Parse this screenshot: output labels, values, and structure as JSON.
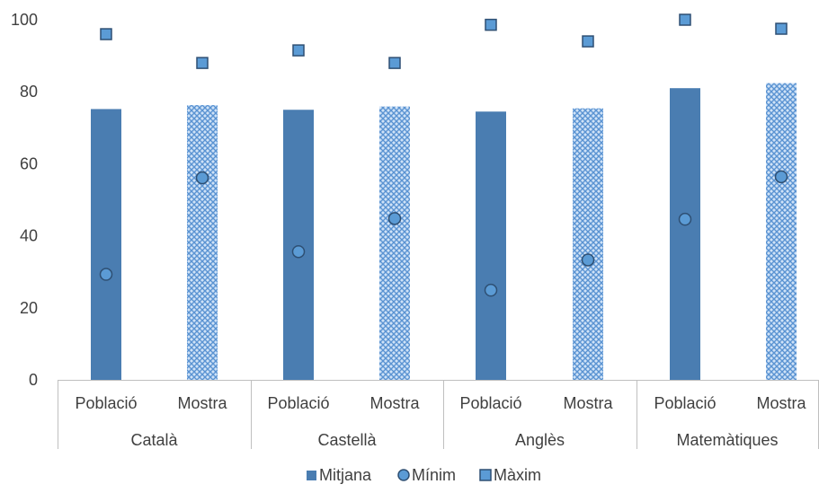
{
  "chart_data": {
    "type": "bar",
    "groups": [
      "Català",
      "Castellà",
      "Anglès",
      "Matemàtiques"
    ],
    "subcategories": [
      "Població",
      "Mostra",
      "Població",
      "Mostra",
      "Població",
      "Mostra",
      "Població",
      "Mostra"
    ],
    "series": [
      {
        "name": "Mitjana",
        "kind": "bar",
        "values": [
          75.2,
          76.3,
          75.0,
          75.9,
          74.5,
          75.4,
          81.0,
          82.4
        ]
      },
      {
        "name": "Mínim",
        "kind": "marker-circle",
        "values": [
          29.3,
          56.1,
          35.6,
          44.8,
          24.9,
          33.3,
          44.6,
          56.4
        ]
      },
      {
        "name": "Màxim",
        "kind": "marker-square",
        "values": [
          96.0,
          88.0,
          91.5,
          88.0,
          98.6,
          94.0,
          100.0,
          97.5
        ]
      }
    ],
    "yticks": [
      "0",
      "20",
      "40",
      "60",
      "80",
      "100"
    ],
    "ylim": [
      0,
      100
    ],
    "legend_position": "bottom",
    "grid": false,
    "colors": {
      "bar_fill": "#4a7db1",
      "bar_pattern_light": "#cfe2f7",
      "bar_pattern_dark": "#5a93d2",
      "marker_fill": "#5b9bd5",
      "marker_edge": "#2e4f73",
      "axis": "#bfbfbf",
      "text": "#404040"
    }
  }
}
